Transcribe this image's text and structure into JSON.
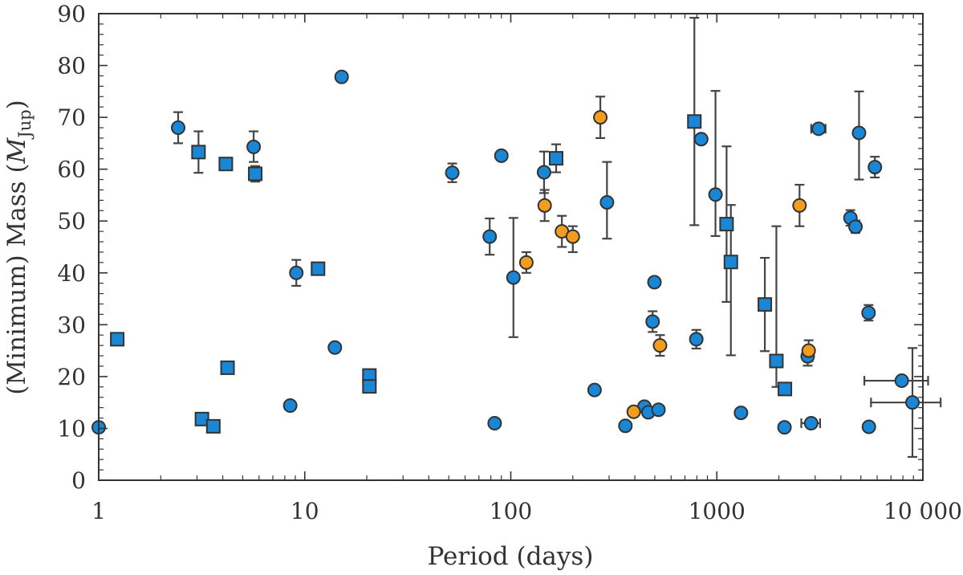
{
  "chart_data": {
    "type": "scatter",
    "title": "",
    "xlabel": "Period (days)",
    "ylabel": {
      "prefix": "(Minimum) Mass (",
      "symbol": "M",
      "subscript": "Jup",
      "suffix": ")"
    },
    "xscale": "log",
    "xlim": [
      1,
      10000
    ],
    "ylim": [
      0,
      90
    ],
    "xticks": [
      {
        "value": 1,
        "label": "1"
      },
      {
        "value": 10,
        "label": "10"
      },
      {
        "value": 100,
        "label": "100"
      },
      {
        "value": 1000,
        "label": "1000"
      },
      {
        "value": 10000,
        "label": "10 000"
      }
    ],
    "yticks": [
      {
        "value": 0,
        "label": "0"
      },
      {
        "value": 10,
        "label": "10"
      },
      {
        "value": 20,
        "label": "20"
      },
      {
        "value": 30,
        "label": "30"
      },
      {
        "value": 40,
        "label": "40"
      },
      {
        "value": 50,
        "label": "50"
      },
      {
        "value": 60,
        "label": "60"
      },
      {
        "value": 70,
        "label": "70"
      },
      {
        "value": 80,
        "label": "80"
      },
      {
        "value": 90,
        "label": "90"
      }
    ],
    "grid": false,
    "legend": null,
    "colors": {
      "blue": "#1a86d6",
      "orange": "#f39c1d",
      "edge": "#333333",
      "errorbar": "#444444"
    },
    "series": [
      {
        "name": "blue-circles",
        "marker": "circle",
        "color": "#1a86d6",
        "points": [
          {
            "x": 1.0,
            "y": 10.2
          },
          {
            "x": 2.43,
            "y": 68.0,
            "yerr": [
              3.0,
              3.0
            ]
          },
          {
            "x": 5.65,
            "y": 64.3,
            "yerr": [
              2.9,
              3.0
            ]
          },
          {
            "x": 8.5,
            "y": 14.4
          },
          {
            "x": 9.1,
            "y": 40.0,
            "yerr": [
              2.5,
              2.5
            ]
          },
          {
            "x": 14.0,
            "y": 25.6
          },
          {
            "x": 15.1,
            "y": 77.8
          },
          {
            "x": 52,
            "y": 59.3,
            "yerr": [
              1.8,
              1.8
            ]
          },
          {
            "x": 79,
            "y": 47.0,
            "yerr": [
              3.5,
              3.5
            ]
          },
          {
            "x": 83.5,
            "y": 11.0
          },
          {
            "x": 90,
            "y": 62.6
          },
          {
            "x": 103,
            "y": 39.1,
            "yerr": [
              11.5,
              11.5
            ]
          },
          {
            "x": 145,
            "y": 59.4,
            "yerr": [
              4.0,
              4.0
            ]
          },
          {
            "x": 255,
            "y": 17.4
          },
          {
            "x": 293,
            "y": 53.6,
            "yerr": [
              7.0,
              7.8
            ]
          },
          {
            "x": 360,
            "y": 10.5
          },
          {
            "x": 445,
            "y": 14.2
          },
          {
            "x": 465,
            "y": 13.1
          },
          {
            "x": 488,
            "y": 30.6,
            "yerr": [
              2.0,
              2.0
            ]
          },
          {
            "x": 498,
            "y": 38.2
          },
          {
            "x": 521,
            "y": 13.6
          },
          {
            "x": 795,
            "y": 27.2,
            "yerr": [
              1.8,
              1.8
            ]
          },
          {
            "x": 840,
            "y": 65.8
          },
          {
            "x": 985,
            "y": 55.1,
            "yerr": [
              8.0,
              20.0
            ]
          },
          {
            "x": 1310,
            "y": 13.0
          },
          {
            "x": 2130,
            "y": 10.2
          },
          {
            "x": 2760,
            "y": 23.9,
            "yerr": [
              1.8,
              1.8
            ]
          },
          {
            "x": 2870,
            "y": 11.0,
            "xerr": [
              300,
              300
            ]
          },
          {
            "x": 3120,
            "y": 67.8,
            "xerr": [
              250,
              250
            ]
          },
          {
            "x": 4450,
            "y": 50.6,
            "yerr": [
              1.5,
              1.5
            ]
          },
          {
            "x": 4710,
            "y": 48.9,
            "yerr": [
              1.2,
              1.2
            ]
          },
          {
            "x": 4900,
            "y": 67.0,
            "yerr": [
              9.0,
              8.0
            ]
          },
          {
            "x": 5450,
            "y": 32.3,
            "yerr": [
              1.5,
              1.5
            ]
          },
          {
            "x": 5470,
            "y": 10.3
          },
          {
            "x": 5850,
            "y": 60.4,
            "yerr": [
              2.0,
              2.0
            ]
          },
          {
            "x": 7900,
            "y": 19.2,
            "xerr": [
              2700,
              2700
            ]
          },
          {
            "x": 8900,
            "y": 15.0,
            "xerr": [
              3300,
              3300
            ],
            "yerr": [
              10.5,
              10.5
            ]
          }
        ]
      },
      {
        "name": "blue-squares",
        "marker": "square",
        "color": "#1a86d6",
        "points": [
          {
            "x": 1.23,
            "y": 27.2
          },
          {
            "x": 3.05,
            "y": 63.3,
            "yerr": [
              4.0,
              4.0
            ]
          },
          {
            "x": 3.17,
            "y": 11.8
          },
          {
            "x": 3.6,
            "y": 10.4
          },
          {
            "x": 4.14,
            "y": 61.0
          },
          {
            "x": 4.22,
            "y": 21.7
          },
          {
            "x": 5.75,
            "y": 59.1,
            "yerr": [
              1.5,
              1.5
            ]
          },
          {
            "x": 11.6,
            "y": 40.8,
            "yerr": [
              0.8,
              0.8
            ]
          },
          {
            "x": 20.6,
            "y": 20.2
          },
          {
            "x": 20.6,
            "y": 18.1
          },
          {
            "x": 166,
            "y": 62.1,
            "yerr": [
              2.7,
              2.7
            ]
          },
          {
            "x": 778,
            "y": 69.2,
            "yerr": [
              20.0,
              20.0
            ]
          },
          {
            "x": 1115,
            "y": 49.4,
            "yerr": [
              15.0,
              15.0
            ]
          },
          {
            "x": 1170,
            "y": 42.1,
            "yerr": [
              18.0,
              11.0
            ]
          },
          {
            "x": 1710,
            "y": 33.9,
            "yerr": [
              9.0,
              9.0
            ]
          },
          {
            "x": 1945,
            "y": 23.0,
            "yerr": [
              5.0,
              26.0
            ]
          },
          {
            "x": 2140,
            "y": 17.6,
            "yerr": [
              0.8,
              0.8
            ]
          }
        ]
      },
      {
        "name": "orange-circles",
        "marker": "circle",
        "color": "#f39c1d",
        "points": [
          {
            "x": 119,
            "y": 42.0,
            "yerr": [
              2.0,
              2.0
            ]
          },
          {
            "x": 146,
            "y": 53.0,
            "yerr": [
              3.0,
              3.0
            ]
          },
          {
            "x": 177,
            "y": 48.0,
            "yerr": [
              3.0,
              3.0
            ]
          },
          {
            "x": 200,
            "y": 47.0,
            "yerr": [
              3.0,
              2.0
            ]
          },
          {
            "x": 272,
            "y": 70.0,
            "yerr": [
              4.0,
              4.0
            ]
          },
          {
            "x": 395,
            "y": 13.2
          },
          {
            "x": 530,
            "y": 26.0,
            "yerr": [
              2.0,
              2.0
            ]
          },
          {
            "x": 2520,
            "y": 53.0,
            "yerr": [
              4.0,
              4.0
            ]
          },
          {
            "x": 2790,
            "y": 25.0,
            "yerr": [
              2.0,
              2.0
            ]
          }
        ]
      }
    ]
  }
}
